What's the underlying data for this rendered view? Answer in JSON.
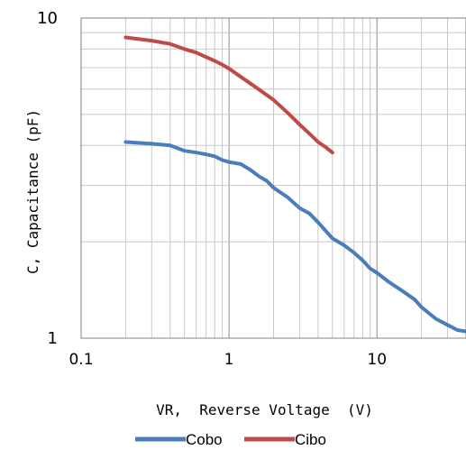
{
  "chart_data": {
    "type": "line",
    "title": "",
    "xlabel": "VR,  Reverse Voltage  (V)",
    "ylabel": "C, Capacitance (pF)",
    "x_scale": "log",
    "y_scale": "log",
    "xlim": [
      0.1,
      40
    ],
    "ylim": [
      1,
      10
    ],
    "x_tick_labels": [
      "0.1",
      "1",
      "10"
    ],
    "y_tick_labels": [
      "1",
      "10"
    ],
    "grid": true,
    "legend_position": "bottom",
    "series": [
      {
        "name": "Cobo",
        "color": "#4a7ebb",
        "x": [
          0.2,
          0.3,
          0.4,
          0.5,
          0.6,
          0.7,
          0.8,
          0.9,
          1.0,
          1.2,
          1.4,
          1.6,
          1.8,
          2.0,
          2.5,
          3.0,
          3.5,
          4.0,
          5.0,
          6.0,
          7.0,
          8.0,
          9.0,
          10.0,
          12.0,
          15.0,
          18.0,
          20.0,
          25.0,
          30.0,
          35.0,
          40.0
        ],
        "y": [
          4.1,
          4.05,
          4.0,
          3.85,
          3.8,
          3.75,
          3.7,
          3.6,
          3.55,
          3.5,
          3.35,
          3.2,
          3.1,
          2.95,
          2.75,
          2.55,
          2.45,
          2.3,
          2.05,
          1.95,
          1.85,
          1.75,
          1.65,
          1.6,
          1.5,
          1.4,
          1.32,
          1.25,
          1.15,
          1.1,
          1.06,
          1.05
        ]
      },
      {
        "name": "Cibo",
        "color": "#be4b48",
        "x": [
          0.2,
          0.3,
          0.4,
          0.5,
          0.6,
          0.7,
          0.8,
          0.9,
          1.0,
          1.2,
          1.5,
          2.0,
          2.5,
          3.0,
          3.5,
          4.0,
          4.5,
          5.0
        ],
        "y": [
          8.7,
          8.5,
          8.3,
          8.0,
          7.8,
          7.55,
          7.35,
          7.15,
          6.95,
          6.55,
          6.1,
          5.55,
          5.05,
          4.65,
          4.35,
          4.1,
          3.95,
          3.8
        ]
      }
    ]
  }
}
